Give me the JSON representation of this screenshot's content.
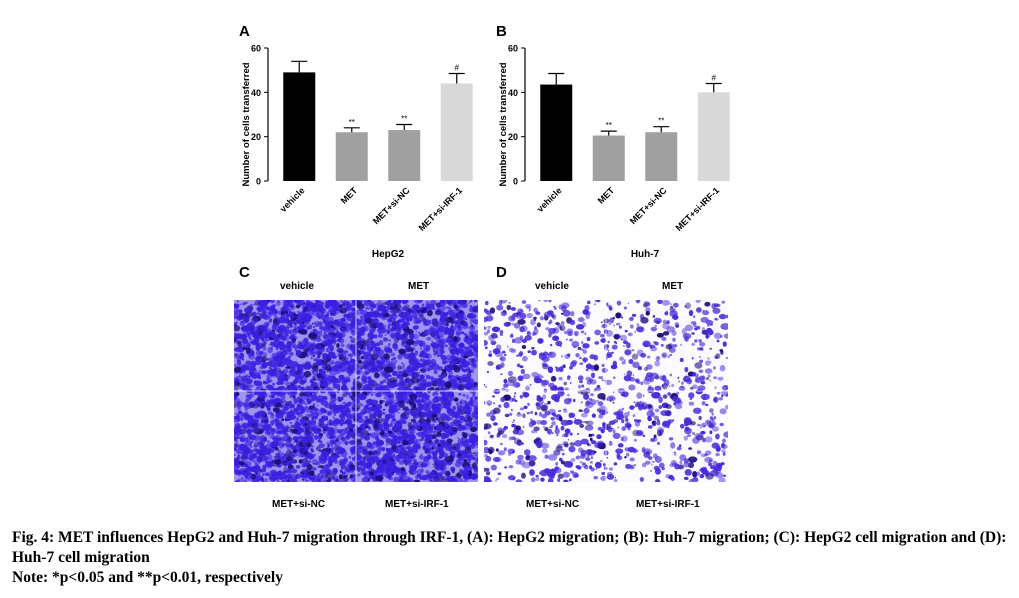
{
  "panels": {
    "A": "A",
    "B": "B",
    "C": "C",
    "D": "D"
  },
  "chart_data": [
    {
      "type": "bar",
      "categories": [
        "vehicle",
        "MET",
        "MET+si-NC",
        "MET+si-IRF-1"
      ],
      "values": [
        49,
        22,
        23,
        44
      ],
      "errors": [
        5,
        2,
        2.5,
        4.5
      ],
      "significance": [
        "",
        "**",
        "**",
        "#"
      ],
      "colors": [
        "#000000",
        "#a0a0a0",
        "#a0a0a0",
        "#d9d9d9"
      ],
      "ylabel": "Number of cells transferred",
      "xlabel": "HepG2",
      "ylim": [
        0,
        60
      ],
      "yticks": [
        0,
        20,
        40,
        60
      ]
    },
    {
      "type": "bar",
      "categories": [
        "vehicle",
        "MET",
        "MET+si-NC",
        "MET+si-IRF-1"
      ],
      "values": [
        43.5,
        20.5,
        22,
        40
      ],
      "errors": [
        5,
        2,
        2.5,
        4
      ],
      "significance": [
        "",
        "**",
        "**",
        "#"
      ],
      "colors": [
        "#000000",
        "#a0a0a0",
        "#a0a0a0",
        "#d9d9d9"
      ],
      "ylabel": "Number of cells transferred",
      "xlabel": "Huh-7",
      "ylim": [
        0,
        60
      ],
      "yticks": [
        0,
        20,
        40,
        60
      ]
    }
  ],
  "images": {
    "C": {
      "top_left": "vehicle",
      "top_right": "MET",
      "bottom_left": "MET+si-NC",
      "bottom_right": "MET+si-IRF-1",
      "stain_color": "#3b1fe0",
      "density": "high"
    },
    "D": {
      "top_left": "vehicle",
      "top_right": "MET",
      "bottom_left": "MET+si-NC",
      "bottom_right": "MET+si-IRF-1",
      "stain_color": "#4a2ad8",
      "density": "low"
    }
  },
  "caption": {
    "line1": "Fig. 4: MET influences HepG2 and Huh-7 migration through IRF-1, (A): HepG2 migration; (B): Huh-7 migration; (C): HepG2 cell migration and (D): Huh-7 cell migration",
    "note": "Note: *p<0.05 and **p<0.01, respectively"
  }
}
